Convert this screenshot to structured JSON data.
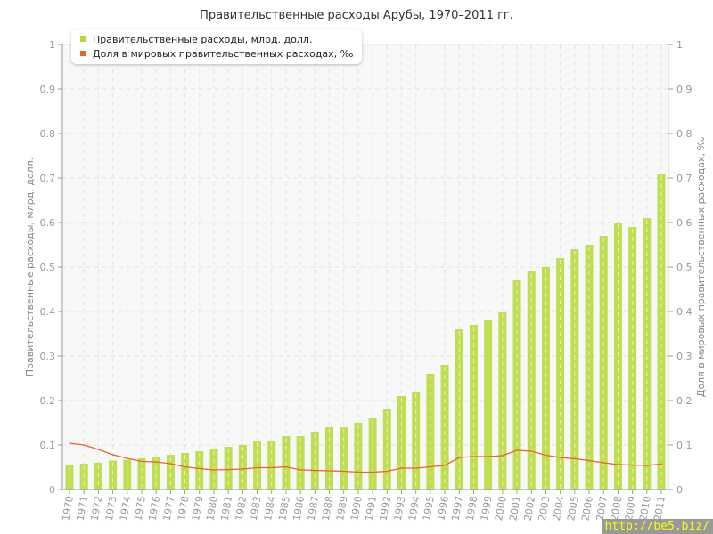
{
  "chart_data": {
    "type": "bar+line",
    "title": "Правительственные расходы Арубы, 1970–2011 гг.",
    "ylabel_left": "Правительственные расходы, млрд. долл.",
    "ylabel_right": "Доля в мировых правительственных расходах, ‰",
    "ylim": [
      0,
      1
    ],
    "yticks": [
      "0",
      "0.1",
      "0.2",
      "0.3",
      "0.4",
      "0.5",
      "0.6",
      "0.7",
      "0.8",
      "0.9",
      "1"
    ],
    "grid": true,
    "legend_position": "top-left",
    "categories": [
      "1970",
      "1971",
      "1972",
      "1973",
      "1974",
      "1975",
      "1976",
      "1977",
      "1978",
      "1979",
      "1980",
      "1981",
      "1982",
      "1983",
      "1984",
      "1985",
      "1986",
      "1987",
      "1988",
      "1989",
      "1990",
      "1991",
      "1992",
      "1993",
      "1994",
      "1995",
      "1996",
      "1997",
      "1998",
      "1999",
      "2000",
      "2001",
      "2002",
      "2003",
      "2004",
      "2005",
      "2006",
      "2007",
      "2008",
      "2009",
      "2010",
      "2011"
    ],
    "series": [
      {
        "name": "Правительственные расходы, млрд. долл.",
        "type": "bar",
        "color": "#b5d935",
        "values": [
          0.055,
          0.058,
          0.06,
          0.065,
          0.067,
          0.07,
          0.074,
          0.078,
          0.082,
          0.086,
          0.091,
          0.096,
          0.1,
          0.11,
          0.11,
          0.12,
          0.12,
          0.13,
          0.14,
          0.14,
          0.15,
          0.16,
          0.18,
          0.21,
          0.22,
          0.26,
          0.28,
          0.36,
          0.37,
          0.38,
          0.4,
          0.47,
          0.49,
          0.5,
          0.52,
          0.54,
          0.55,
          0.57,
          0.6,
          0.59,
          0.61,
          0.71
        ]
      },
      {
        "name": "Доля в мировых правительственных расходах, ‰",
        "type": "line",
        "color": "#e8632c",
        "values": [
          0.104,
          0.1,
          0.09,
          0.078,
          0.07,
          0.063,
          0.062,
          0.058,
          0.051,
          0.047,
          0.044,
          0.045,
          0.046,
          0.049,
          0.049,
          0.051,
          0.044,
          0.043,
          0.042,
          0.041,
          0.039,
          0.039,
          0.041,
          0.048,
          0.048,
          0.051,
          0.054,
          0.072,
          0.074,
          0.074,
          0.076,
          0.088,
          0.086,
          0.077,
          0.072,
          0.069,
          0.065,
          0.06,
          0.056,
          0.055,
          0.054,
          0.057
        ]
      }
    ]
  },
  "watermark": "http://be5.biz/"
}
